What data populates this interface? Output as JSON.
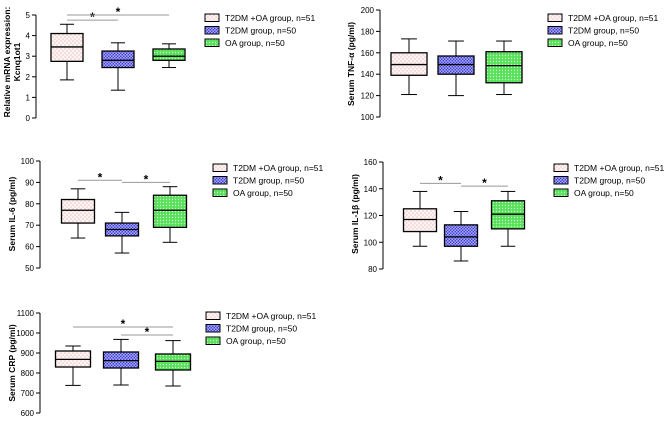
{
  "legend": {
    "entries": [
      {
        "key": "t2dm_oa",
        "label": "T2DM +OA group, n=51",
        "fill": "#fbeeee",
        "pattern": "dots-red"
      },
      {
        "key": "t2dm",
        "label": "T2DM group, n=50",
        "fill": "#8080f2",
        "pattern": "hatch-blue"
      },
      {
        "key": "oa",
        "label": "OA group, n=50",
        "fill": "#5ee860",
        "pattern": "dots-green"
      }
    ]
  },
  "chart_data": [
    {
      "id": "kcnq1ot1",
      "type": "box",
      "title": "",
      "ylabel": "Relative mRNA expression:",
      "ylabel2": "Kcnq1ot1",
      "ylim": [
        0,
        5
      ],
      "yticks": [
        0,
        1,
        2,
        3,
        4,
        5
      ],
      "categories": [
        "T2DM +OA group, n=51",
        "T2DM group, n=50",
        "OA group, n=50"
      ],
      "boxes": [
        {
          "min": 1.85,
          "q1": 2.75,
          "median": 3.45,
          "q3": 4.1,
          "max": 4.55
        },
        {
          "min": 1.35,
          "q1": 2.45,
          "median": 2.8,
          "q3": 3.25,
          "max": 3.65
        },
        {
          "min": 2.45,
          "q1": 2.8,
          "median": 3.0,
          "q3": 3.35,
          "max": 3.6
        }
      ],
      "significance": [
        {
          "from": 0,
          "to": 1,
          "y": 4.75,
          "label": "*"
        },
        {
          "from": 0,
          "to": 2,
          "y": 5.0,
          "label": "*"
        }
      ]
    },
    {
      "id": "tnf",
      "type": "box",
      "title": "",
      "ylabel": "Serum TNF-α (pg/ml)",
      "ylim": [
        100,
        200
      ],
      "yticks": [
        100,
        120,
        140,
        160,
        180,
        200
      ],
      "categories": [
        "T2DM +OA group, n=51",
        "T2DM group, n=50",
        "OA group, n=50"
      ],
      "boxes": [
        {
          "min": 121,
          "q1": 139,
          "median": 149,
          "q3": 160,
          "max": 173
        },
        {
          "min": 120,
          "q1": 140,
          "median": 149,
          "q3": 157,
          "max": 171
        },
        {
          "min": 121,
          "q1": 132,
          "median": 148,
          "q3": 161,
          "max": 171
        }
      ],
      "significance": []
    },
    {
      "id": "il6",
      "type": "box",
      "title": "",
      "ylabel": "Serum IL-6 (pg/ml)",
      "ylim": [
        50,
        100
      ],
      "yticks": [
        50,
        60,
        70,
        80,
        90,
        100
      ],
      "categories": [
        "T2DM +OA group, n=51",
        "T2DM group, n=50",
        "OA group, n=50"
      ],
      "boxes": [
        {
          "min": 64,
          "q1": 71,
          "median": 77,
          "q3": 82,
          "max": 87
        },
        {
          "min": 57,
          "q1": 65,
          "median": 68,
          "q3": 71,
          "max": 76
        },
        {
          "min": 62,
          "q1": 69,
          "median": 77,
          "q3": 84,
          "max": 88
        }
      ],
      "significance": [
        {
          "from": 0,
          "to": 1,
          "y": 91,
          "label": "*"
        },
        {
          "from": 1,
          "to": 2,
          "y": 90,
          "label": "*"
        }
      ]
    },
    {
      "id": "il1b",
      "type": "box",
      "title": "",
      "ylabel": "Serum IL-1β (pg/ml)",
      "ylim": [
        80,
        160
      ],
      "yticks": [
        80,
        100,
        120,
        140,
        160
      ],
      "categories": [
        "T2DM +OA group, n=51",
        "T2DM group, n=50",
        "OA group, n=50"
      ],
      "boxes": [
        {
          "min": 97,
          "q1": 108,
          "median": 117,
          "q3": 125,
          "max": 138
        },
        {
          "min": 86,
          "q1": 97,
          "median": 104,
          "q3": 113,
          "max": 123
        },
        {
          "min": 97,
          "q1": 110,
          "median": 121,
          "q3": 131,
          "max": 138
        }
      ],
      "significance": [
        {
          "from": 0,
          "to": 1,
          "y": 144,
          "label": "*"
        },
        {
          "from": 1,
          "to": 2,
          "y": 142,
          "label": "*"
        }
      ]
    },
    {
      "id": "crp",
      "type": "box",
      "title": "",
      "ylabel": "Serum CRP (pg/ml)",
      "ylim": [
        600,
        1100
      ],
      "yticks": [
        600,
        700,
        800,
        900,
        1000,
        1100
      ],
      "categories": [
        "T2DM +OA group, n=51",
        "T2DM group, n=50",
        "OA group, n=50"
      ],
      "boxes": [
        {
          "min": 738,
          "q1": 830,
          "median": 868,
          "q3": 910,
          "max": 935
        },
        {
          "min": 740,
          "q1": 825,
          "median": 862,
          "q3": 905,
          "max": 968
        },
        {
          "min": 735,
          "q1": 815,
          "median": 858,
          "q3": 895,
          "max": 962
        }
      ],
      "significance": [
        {
          "from": 0,
          "to": 2,
          "y": 1030,
          "label": "*"
        },
        {
          "from": 1,
          "to": 2,
          "y": 990,
          "label": "*"
        }
      ]
    }
  ]
}
